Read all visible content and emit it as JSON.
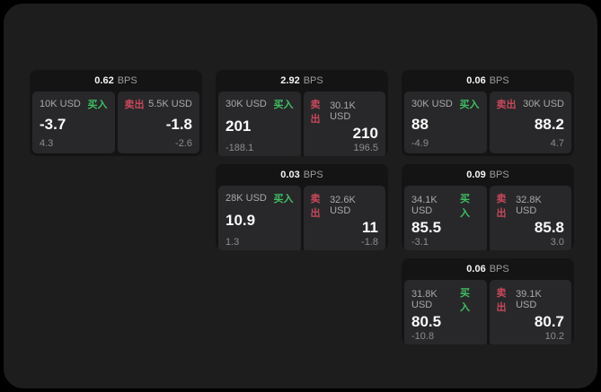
{
  "labels": {
    "buy": "买入",
    "sell": "卖出",
    "bps_unit": "BPS"
  },
  "colors": {
    "buy": "#3fbf63",
    "sell": "#c9485b",
    "window_bg": "#1d1d1e",
    "card_bg": "#141415",
    "panel_bg": "#28282a"
  },
  "cards": [
    {
      "row": 1,
      "col": 1,
      "bps": "0.62",
      "buy": {
        "notional": "10K USD",
        "value": "-3.7",
        "sub": "4.3"
      },
      "sell": {
        "notional": "5.5K USD",
        "value": "-1.8",
        "sub": "-2.6"
      }
    },
    {
      "row": 1,
      "col": 2,
      "bps": "2.92",
      "buy": {
        "notional": "30K USD",
        "value": "201",
        "sub": "-188.1"
      },
      "sell": {
        "notional": "30.1K USD",
        "value": "210",
        "sub": "196.5"
      }
    },
    {
      "row": 1,
      "col": 3,
      "bps": "0.06",
      "buy": {
        "notional": "30K USD",
        "value": "88",
        "sub": "-4.9"
      },
      "sell": {
        "notional": "30K USD",
        "value": "88.2",
        "sub": "4.7"
      }
    },
    {
      "row": 2,
      "col": 2,
      "bps": "0.03",
      "buy": {
        "notional": "28K USD",
        "value": "10.9",
        "sub": "1.3"
      },
      "sell": {
        "notional": "32.6K USD",
        "value": "11",
        "sub": "-1.8"
      }
    },
    {
      "row": 2,
      "col": 3,
      "bps": "0.09",
      "buy": {
        "notional": "34.1K USD",
        "value": "85.5",
        "sub": "-3.1"
      },
      "sell": {
        "notional": "32.8K USD",
        "value": "85.8",
        "sub": "3.0"
      }
    },
    {
      "row": 3,
      "col": 3,
      "bps": "0.06",
      "buy": {
        "notional": "31.8K USD",
        "value": "80.5",
        "sub": "-10.8"
      },
      "sell": {
        "notional": "39.1K USD",
        "value": "80.7",
        "sub": "10.2"
      }
    }
  ]
}
